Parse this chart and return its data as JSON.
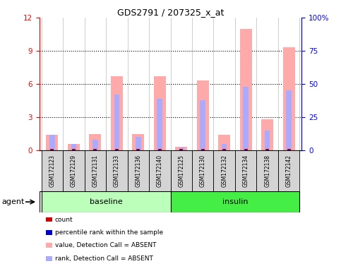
{
  "title": "GDS2791 / 207325_x_at",
  "samples": [
    "GSM172123",
    "GSM172129",
    "GSM172131",
    "GSM172133",
    "GSM172136",
    "GSM172140",
    "GSM172125",
    "GSM172130",
    "GSM172132",
    "GSM172134",
    "GSM172138",
    "GSM172142"
  ],
  "ylim_left": [
    0,
    12
  ],
  "ylim_right": [
    0,
    100
  ],
  "yticks_left": [
    0,
    3,
    6,
    9,
    12
  ],
  "yticks_right": [
    0,
    25,
    50,
    75,
    100
  ],
  "yticklabels_right": [
    "0",
    "25",
    "50",
    "75",
    "100%"
  ],
  "pink_values": [
    1.4,
    0.55,
    1.5,
    6.7,
    1.5,
    6.7,
    0.35,
    6.3,
    1.4,
    11.0,
    2.8,
    9.3
  ],
  "blue_rank_values": [
    12.0,
    5.0,
    8.0,
    42.0,
    10.0,
    39.0,
    2.0,
    38.0,
    5.0,
    48.0,
    15.0,
    45.0
  ],
  "count_color": "#cc0000",
  "percentile_color": "#0000cc",
  "pink_color": "#ffaaaa",
  "blue_rank_color": "#aaaaff",
  "bg_color": "#ffffff",
  "baseline_color": "#bbffbb",
  "insulin_color": "#44ee44",
  "legend_items": [
    {
      "color": "#cc0000",
      "label": "count"
    },
    {
      "color": "#0000cc",
      "label": "percentile rank within the sample"
    },
    {
      "color": "#ffaaaa",
      "label": "value, Detection Call = ABSENT"
    },
    {
      "color": "#aaaaff",
      "label": "rank, Detection Call = ABSENT"
    }
  ]
}
